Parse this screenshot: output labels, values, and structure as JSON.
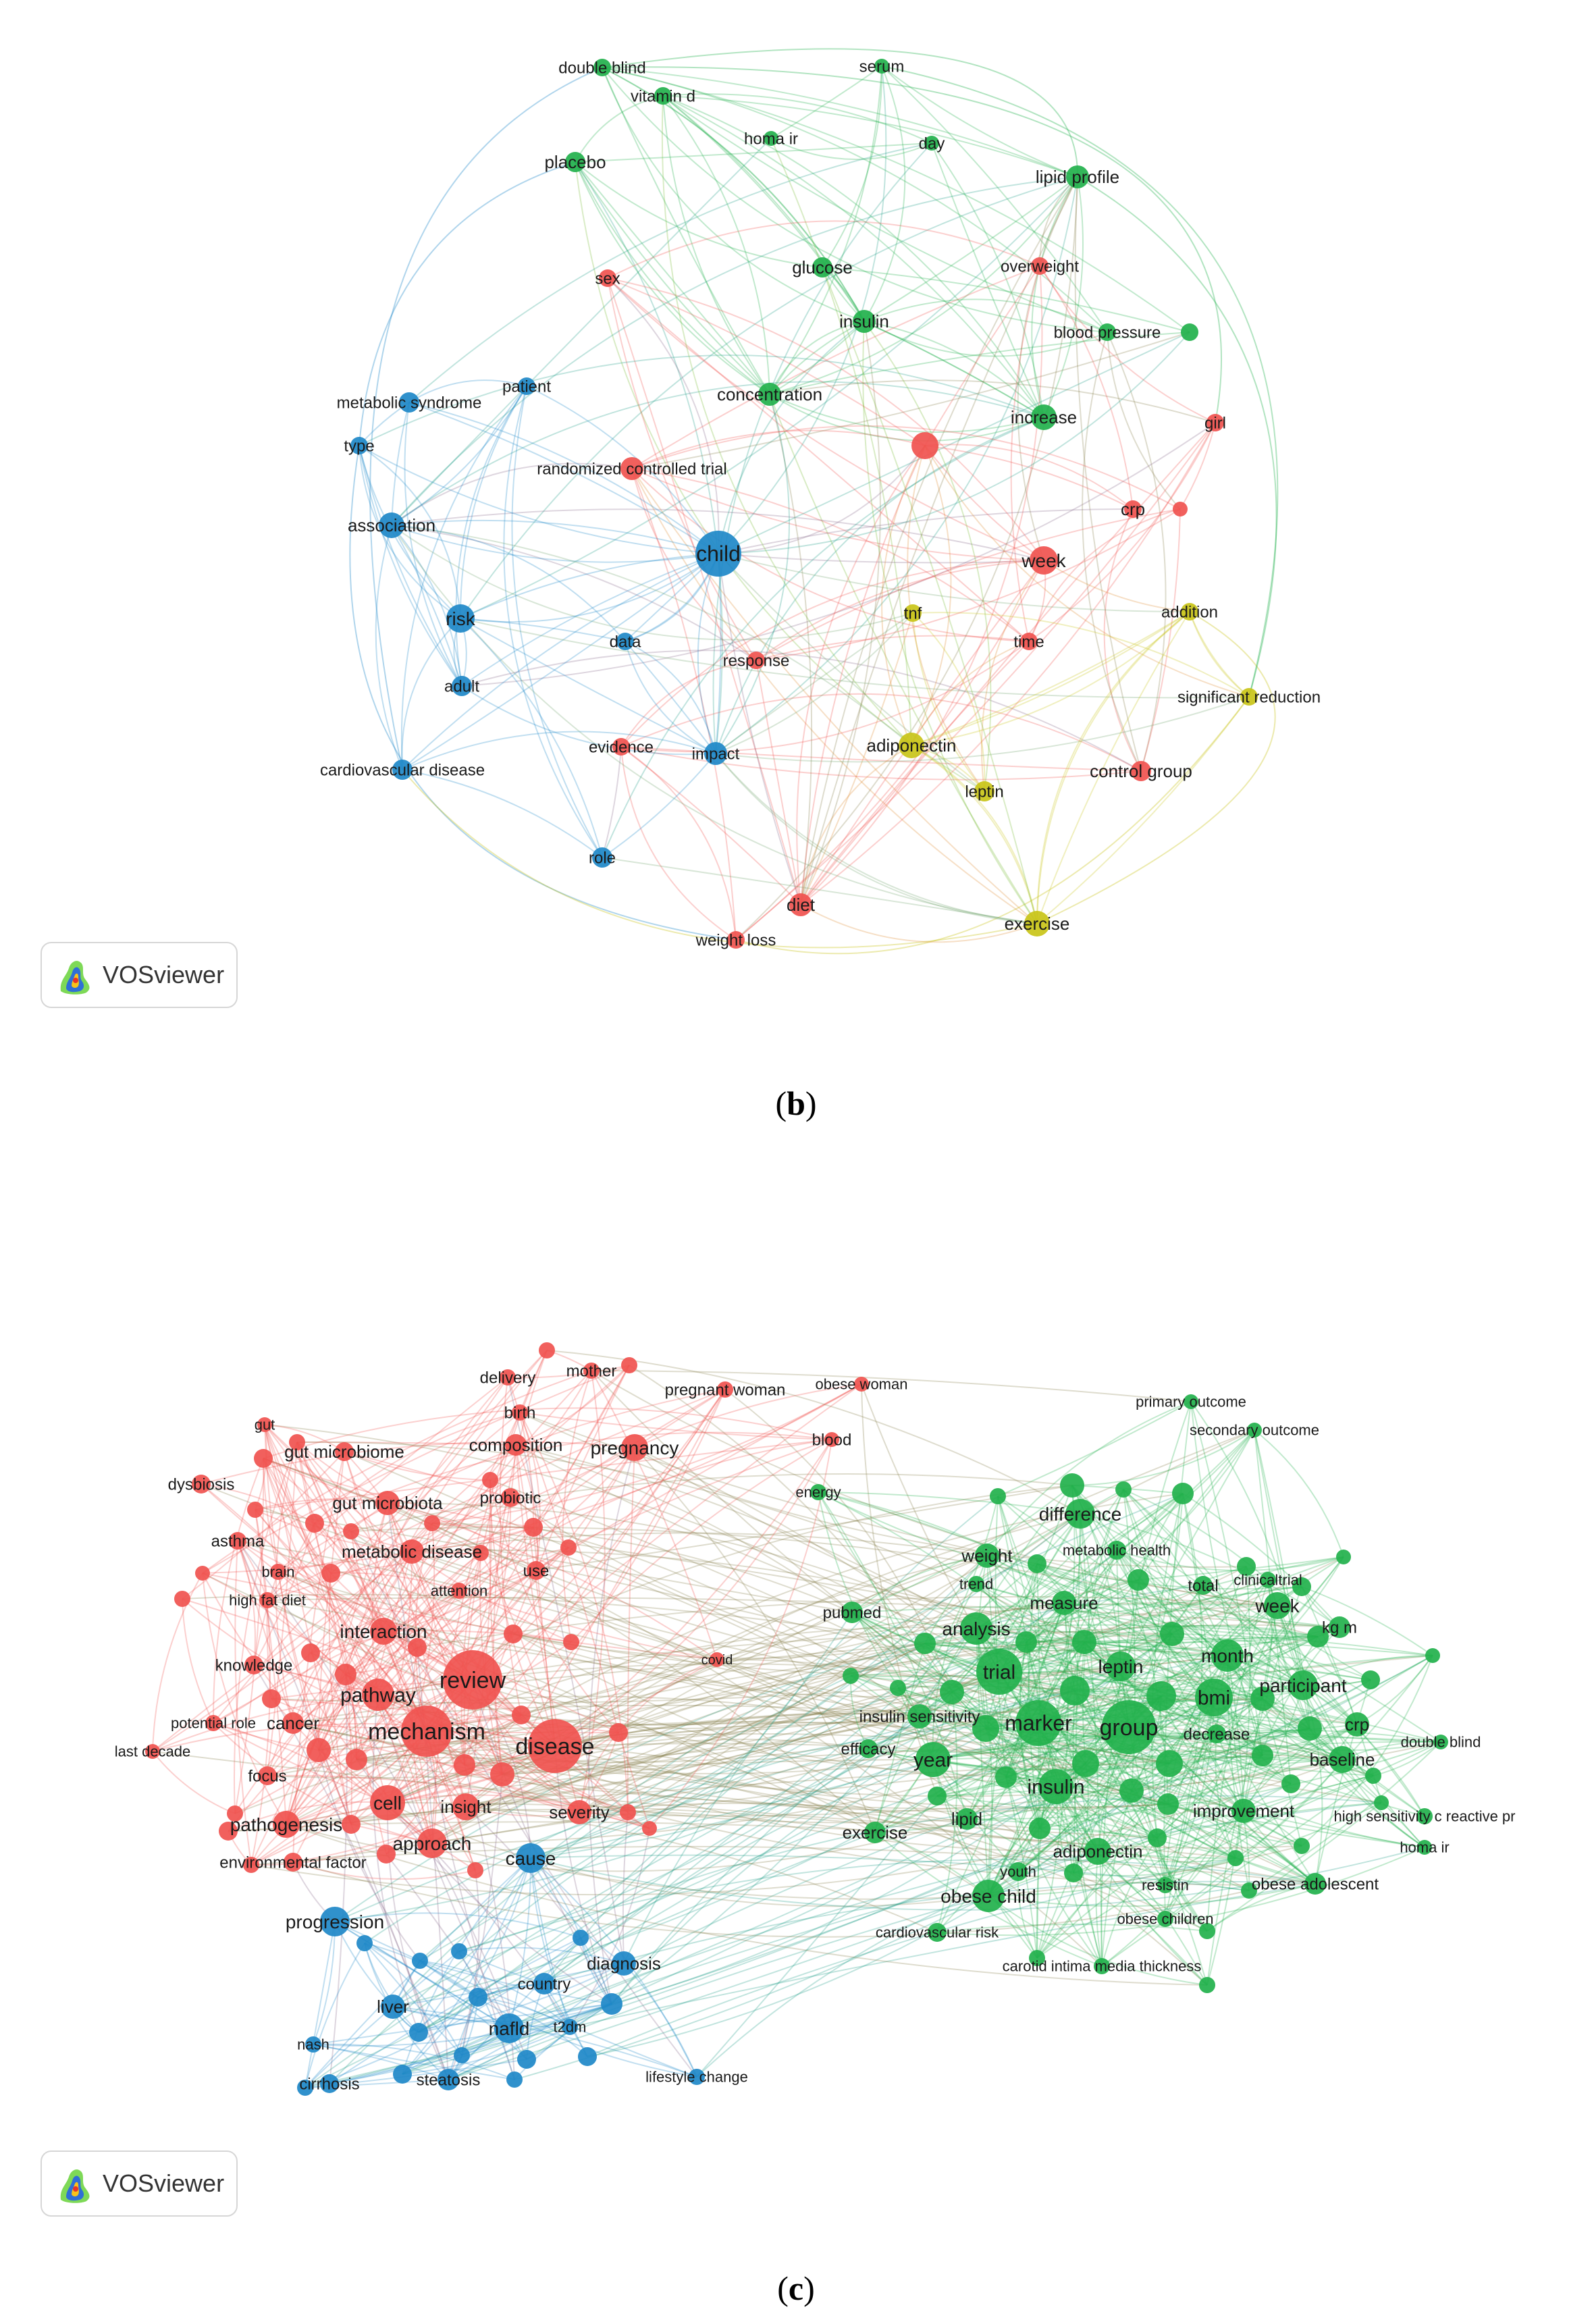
{
  "panel_b": {
    "caption_open": "(",
    "caption_letter": "b",
    "caption_close": ")",
    "badge_text": "VOSviewer",
    "cluster_colors": {
      "red": "#f0524f",
      "green": "#22b14c",
      "blue": "#1e88c8",
      "yellow": "#c9c418"
    },
    "nodes": [
      {
        "id": "double blind",
        "c": "green"
      },
      {
        "id": "serum",
        "c": "green"
      },
      {
        "id": "vitamin d",
        "c": "green"
      },
      {
        "id": "homa ir",
        "c": "green"
      },
      {
        "id": "day",
        "c": "green"
      },
      {
        "id": "placebo",
        "c": "green"
      },
      {
        "id": "lipid profile",
        "c": "green"
      },
      {
        "id": "glucose",
        "c": "green"
      },
      {
        "id": "insulin",
        "c": "green"
      },
      {
        "id": "blood pressure",
        "c": "green"
      },
      {
        "id": "concentration",
        "c": "green"
      },
      {
        "id": "increase",
        "c": "green"
      },
      {
        "id": "sex",
        "c": "red"
      },
      {
        "id": "overweight",
        "c": "red"
      },
      {
        "id": "girl",
        "c": "red"
      },
      {
        "id": "randomized controlled trial",
        "c": "red"
      },
      {
        "id": "crp",
        "c": "red"
      },
      {
        "id": "week",
        "c": "red"
      },
      {
        "id": "time",
        "c": "red"
      },
      {
        "id": "response",
        "c": "red"
      },
      {
        "id": "evidence",
        "c": "red"
      },
      {
        "id": "control group",
        "c": "red"
      },
      {
        "id": "diet",
        "c": "red"
      },
      {
        "id": "weight loss",
        "c": "red"
      },
      {
        "id": "metabolic syndrome",
        "c": "blue"
      },
      {
        "id": "patient",
        "c": "blue"
      },
      {
        "id": "type",
        "c": "blue"
      },
      {
        "id": "association",
        "c": "blue"
      },
      {
        "id": "child",
        "c": "blue"
      },
      {
        "id": "risk",
        "c": "blue"
      },
      {
        "id": "data",
        "c": "blue"
      },
      {
        "id": "adult",
        "c": "blue"
      },
      {
        "id": "impact",
        "c": "blue"
      },
      {
        "id": "cardiovascular disease",
        "c": "blue"
      },
      {
        "id": "role",
        "c": "blue"
      },
      {
        "id": "tnf",
        "c": "yellow"
      },
      {
        "id": "addition",
        "c": "yellow"
      },
      {
        "id": "significant reduction",
        "c": "yellow"
      },
      {
        "id": "adiponectin",
        "c": "yellow"
      },
      {
        "id": "leptin",
        "c": "yellow"
      },
      {
        "id": "exercise",
        "c": "yellow"
      }
    ]
  },
  "panel_c": {
    "caption_open": "(",
    "caption_letter": "c",
    "caption_close": ")",
    "badge_text": "VOSviewer",
    "cluster_colors": {
      "red": "#f0524f",
      "green": "#22b14c",
      "blue": "#1e88c8"
    },
    "nodes": [
      {
        "id": "delivery",
        "c": "red"
      },
      {
        "id": "mother",
        "c": "red"
      },
      {
        "id": "pregnant woman",
        "c": "red"
      },
      {
        "id": "obese woman",
        "c": "red"
      },
      {
        "id": "birth",
        "c": "red"
      },
      {
        "id": "gut",
        "c": "red"
      },
      {
        "id": "gut microbiome",
        "c": "red"
      },
      {
        "id": "composition",
        "c": "red"
      },
      {
        "id": "pregnancy",
        "c": "red"
      },
      {
        "id": "blood",
        "c": "red"
      },
      {
        "id": "dysbiosis",
        "c": "red"
      },
      {
        "id": "gut microbiota",
        "c": "red"
      },
      {
        "id": "probiotic",
        "c": "red"
      },
      {
        "id": "asthma",
        "c": "red"
      },
      {
        "id": "metabolic disease",
        "c": "red"
      },
      {
        "id": "brain",
        "c": "red"
      },
      {
        "id": "use",
        "c": "red"
      },
      {
        "id": "attention",
        "c": "red"
      },
      {
        "id": "high fat diet",
        "c": "red"
      },
      {
        "id": "interaction",
        "c": "red"
      },
      {
        "id": "knowledge",
        "c": "red"
      },
      {
        "id": "review",
        "c": "red"
      },
      {
        "id": "pathway",
        "c": "red"
      },
      {
        "id": "potential role",
        "c": "red"
      },
      {
        "id": "cancer",
        "c": "red"
      },
      {
        "id": "mechanism",
        "c": "red"
      },
      {
        "id": "disease",
        "c": "red"
      },
      {
        "id": "last decade",
        "c": "red"
      },
      {
        "id": "focus",
        "c": "red"
      },
      {
        "id": "cell",
        "c": "red"
      },
      {
        "id": "insight",
        "c": "red"
      },
      {
        "id": "severity",
        "c": "red"
      },
      {
        "id": "pathogenesis",
        "c": "red"
      },
      {
        "id": "approach",
        "c": "red"
      },
      {
        "id": "environmental factor",
        "c": "red"
      },
      {
        "id": "covid",
        "c": "red"
      },
      {
        "id": "cause",
        "c": "blue"
      },
      {
        "id": "progression",
        "c": "blue"
      },
      {
        "id": "diagnosis",
        "c": "blue"
      },
      {
        "id": "country",
        "c": "blue"
      },
      {
        "id": "liver",
        "c": "blue"
      },
      {
        "id": "nafld",
        "c": "blue"
      },
      {
        "id": "t2dm",
        "c": "blue"
      },
      {
        "id": "nash",
        "c": "blue"
      },
      {
        "id": "cirrhosis",
        "c": "blue"
      },
      {
        "id": "steatosis",
        "c": "blue"
      },
      {
        "id": "lifestyle change",
        "c": "blue"
      },
      {
        "id": "primary outcome",
        "c": "green"
      },
      {
        "id": "secondary outcome",
        "c": "green"
      },
      {
        "id": "energy",
        "c": "green"
      },
      {
        "id": "difference",
        "c": "green"
      },
      {
        "id": "metabolic health",
        "c": "green"
      },
      {
        "id": "weight",
        "c": "green"
      },
      {
        "id": "trend",
        "c": "green"
      },
      {
        "id": "clinicaltrial",
        "c": "green"
      },
      {
        "id": "total",
        "c": "green"
      },
      {
        "id": "measure",
        "c": "green"
      },
      {
        "id": "week",
        "c": "green"
      },
      {
        "id": "pubmed",
        "c": "green"
      },
      {
        "id": "analysis",
        "c": "green"
      },
      {
        "id": "kg m",
        "c": "green"
      },
      {
        "id": "month",
        "c": "green"
      },
      {
        "id": "trial",
        "c": "green"
      },
      {
        "id": "leptin",
        "c": "green"
      },
      {
        "id": "participant",
        "c": "green"
      },
      {
        "id": "bmi",
        "c": "green"
      },
      {
        "id": "insulin sensitivity",
        "c": "green"
      },
      {
        "id": "marker",
        "c": "green"
      },
      {
        "id": "group",
        "c": "green"
      },
      {
        "id": "crp",
        "c": "green"
      },
      {
        "id": "decrease",
        "c": "green"
      },
      {
        "id": "efficacy",
        "c": "green"
      },
      {
        "id": "year",
        "c": "green"
      },
      {
        "id": "double blind",
        "c": "green"
      },
      {
        "id": "baseline",
        "c": "green"
      },
      {
        "id": "insulin",
        "c": "green"
      },
      {
        "id": "improvement",
        "c": "green"
      },
      {
        "id": "lipid",
        "c": "green"
      },
      {
        "id": "high sensitivity c reactive pr",
        "c": "green"
      },
      {
        "id": "exercise",
        "c": "green"
      },
      {
        "id": "adiponectin",
        "c": "green"
      },
      {
        "id": "homa ir",
        "c": "green"
      },
      {
        "id": "youth",
        "c": "green"
      },
      {
        "id": "resistin",
        "c": "green"
      },
      {
        "id": "obese adolescent",
        "c": "green"
      },
      {
        "id": "obese child",
        "c": "green"
      },
      {
        "id": "obese children",
        "c": "green"
      },
      {
        "id": "cardiovascular risk",
        "c": "green"
      },
      {
        "id": "carotid intima media thickness",
        "c": "green"
      }
    ]
  }
}
